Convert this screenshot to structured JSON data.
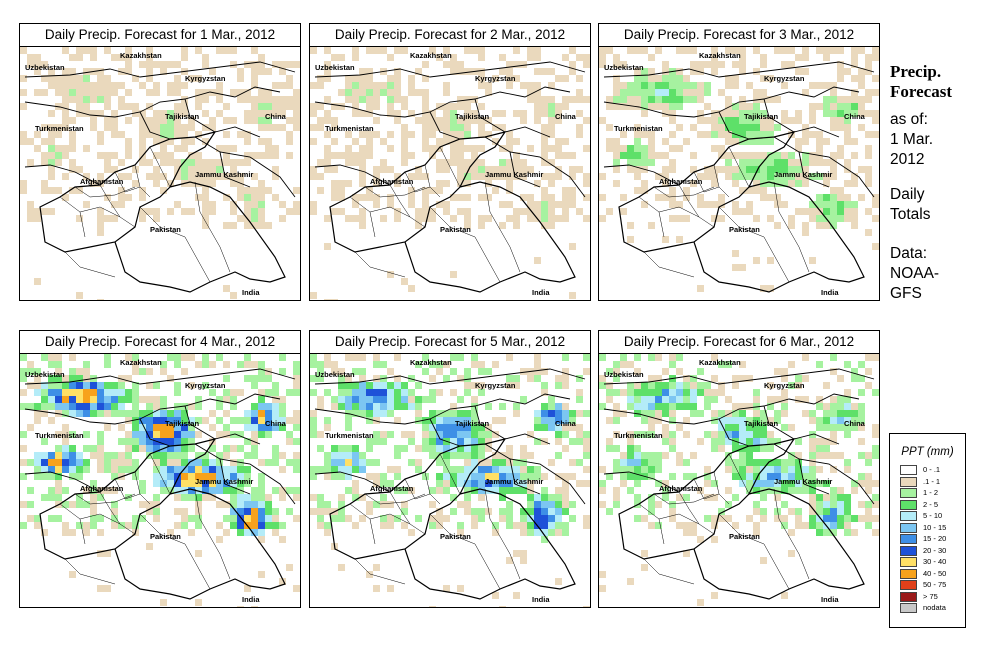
{
  "panels": [
    {
      "title": "Daily Precip. Forecast for  1 Mar., 2012",
      "day": "1 Mar., 2012",
      "max_category": "1 - 2"
    },
    {
      "title": "Daily Precip. Forecast for  2 Mar., 2012",
      "day": "2 Mar., 2012",
      "max_category": "1 - 2"
    },
    {
      "title": "Daily Precip. Forecast for  3 Mar., 2012",
      "day": "3 Mar., 2012",
      "max_category": "5 - 10"
    },
    {
      "title": "Daily Precip. Forecast for  4 Mar., 2012",
      "day": "4 Mar., 2012",
      "max_category": "40 - 50"
    },
    {
      "title": "Daily Precip. Forecast for  5 Mar., 2012",
      "day": "5 Mar., 2012",
      "max_category": "30 - 40"
    },
    {
      "title": "Daily Precip. Forecast for  6 Mar., 2012",
      "day": "6 Mar., 2012",
      "max_category": "20 - 30"
    }
  ],
  "map_labels": [
    "Kazakhstan",
    "Uzbekistan",
    "Kyrgyzstan",
    "Tajikistan",
    "China",
    "Turkmenistan",
    "Afghanistan",
    "Jammu Kashmir",
    "Pakistan",
    "India"
  ],
  "side": {
    "title_line1": "Precip.",
    "title_line2": "Forecast",
    "asof_line1": "as of:",
    "asof_line2": "1 Mar.",
    "asof_line3": "2012",
    "totals_line1": "Daily",
    "totals_line2": "Totals",
    "data_line1": "Data:",
    "data_line2": "NOAA-",
    "data_line3": "GFS"
  },
  "legend": {
    "title": "PPT (mm)",
    "items": [
      {
        "label": "0 - .1",
        "color": "#ffffff"
      },
      {
        "label": ".1 - 1",
        "color": "#ead9bd"
      },
      {
        "label": "1 - 2",
        "color": "#a6f2a0"
      },
      {
        "label": "2 - 5",
        "color": "#5ee069"
      },
      {
        "label": "5 - 10",
        "color": "#b4ecf8"
      },
      {
        "label": "10 - 15",
        "color": "#7cc6f2"
      },
      {
        "label": "15 - 20",
        "color": "#3e8fe6"
      },
      {
        "label": "20 - 30",
        "color": "#1e52d8"
      },
      {
        "label": "30 - 40",
        "color": "#ffe066"
      },
      {
        "label": "40 - 50",
        "color": "#f7a21c"
      },
      {
        "label": "50 - 75",
        "color": "#e0401a"
      },
      {
        "label": "> 75",
        "color": "#9a1a1a"
      },
      {
        "label": "nodata",
        "color": "#c8c8c8"
      }
    ]
  }
}
